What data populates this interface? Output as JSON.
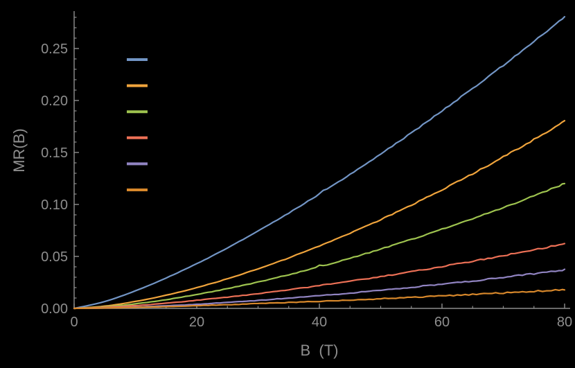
{
  "figure": {
    "background": "#000000",
    "text_color": "#8e8e8e",
    "axis_color": "#8e8e8e"
  },
  "chart_data": {
    "type": "line",
    "title": "",
    "xlabel": "B  (T)",
    "ylabel": "MR(B)",
    "xlim": [
      0,
      81
    ],
    "ylim": [
      0,
      0.285
    ],
    "grid": false,
    "legend_position": "top-left",
    "x_ticks": [
      {
        "value": 0,
        "label": "0"
      },
      {
        "value": 20,
        "label": "20"
      },
      {
        "value": 40,
        "label": "40"
      },
      {
        "value": 60,
        "label": "60"
      },
      {
        "value": 80,
        "label": "80"
      }
    ],
    "y_ticks": [
      {
        "value": 0.0,
        "label": "0.00"
      },
      {
        "value": 0.05,
        "label": "0.05"
      },
      {
        "value": 0.1,
        "label": "0.10"
      },
      {
        "value": 0.15,
        "label": "0.15"
      },
      {
        "value": 0.2,
        "label": "0.20"
      },
      {
        "value": 0.25,
        "label": "0.25"
      }
    ],
    "x": [
      0,
      5,
      10,
      15,
      20,
      25,
      30,
      35,
      40,
      45,
      50,
      55,
      60,
      65,
      70,
      75,
      80
    ],
    "series": [
      {
        "label": "",
        "color": "#7295C5",
        "values": [
          0,
          0.0066,
          0.0169,
          0.0292,
          0.043,
          0.0582,
          0.0745,
          0.0917,
          0.11,
          0.1288,
          0.1485,
          0.1688,
          0.19,
          0.2116,
          0.2338,
          0.2567,
          0.28
        ]
      },
      {
        "label": "",
        "color": "#F0A43C",
        "values": [
          0,
          0.0022,
          0.0067,
          0.0127,
          0.02,
          0.0285,
          0.038,
          0.0485,
          0.06,
          0.0723,
          0.0854,
          0.0994,
          0.1141,
          0.1295,
          0.1457,
          0.1625,
          0.18
        ]
      },
      {
        "label": "",
        "color": "#9EC34F",
        "values": [
          0,
          0.0015,
          0.0044,
          0.0084,
          0.0134,
          0.019,
          0.0254,
          0.0324,
          0.04,
          0.0482,
          0.057,
          0.0663,
          0.0761,
          0.0864,
          0.0971,
          0.1083,
          0.12
        ]
      },
      {
        "label": "",
        "color": "#EC7056",
        "values": [
          0,
          0.001,
          0.0027,
          0.005,
          0.0078,
          0.0108,
          0.0142,
          0.0179,
          0.0219,
          0.0262,
          0.0306,
          0.0353,
          0.0403,
          0.0454,
          0.0507,
          0.0563,
          0.062
        ]
      },
      {
        "label": "",
        "color": "#9184C2",
        "values": [
          0,
          0.0004,
          0.0013,
          0.0025,
          0.004,
          0.0058,
          0.0077,
          0.0099,
          0.0122,
          0.0147,
          0.0174,
          0.0203,
          0.0234,
          0.0265,
          0.0299,
          0.0334,
          0.037
        ]
      },
      {
        "label": "",
        "color": "#D8882B",
        "values": [
          0,
          0.0004,
          0.001,
          0.0017,
          0.0026,
          0.0035,
          0.0046,
          0.0057,
          0.0068,
          0.008,
          0.0093,
          0.0107,
          0.012,
          0.0135,
          0.0149,
          0.0164,
          0.018
        ]
      }
    ]
  }
}
